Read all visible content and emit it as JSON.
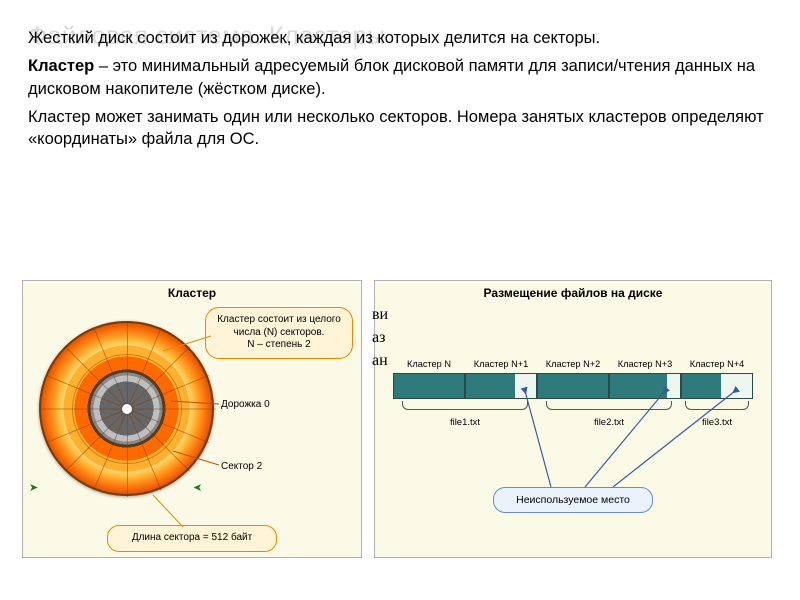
{
  "title": "Файловая система. Кластеры",
  "para1_a": "Жесткий диск состоит из дорожек, каждая из которых делится на секторы.",
  "para2_lead": "Кластер",
  "para2_rest": " – это минимальный адресуемый блок дисковой памяти для записи/чтения данных на дисковом накопителе (жёстком диске).",
  "para3": "Кластер может занимать один или несколько секторов. Номера занятых кластеров определяют «координаты» файла для ОС.",
  "panelA": {
    "title": "Кластер",
    "bubble_top": "Кластер состоит из целого числа (N) секторов.\nN – степень 2",
    "label_track": "Дорожка 0",
    "label_sector": "Сектор 2",
    "bubble_bottom": "Длина сектора = 512 байт",
    "colors": {
      "disk_outer": "#c44b00",
      "disk_mid": "#ff7a10",
      "disk_inner": "#ffd870",
      "bubble_bg": "#fff3d8",
      "bubble_border": "#e68a00",
      "panel_bg": "#fbfae6"
    }
  },
  "panelB": {
    "title": "Размещение файлов на диске",
    "clusters": [
      "Кластер N",
      "Кластер N+1",
      "Кластер N+2",
      "Кластер N+3",
      "Кластер N+4"
    ],
    "fills_pct": [
      100,
      70,
      100,
      82,
      55
    ],
    "files": [
      {
        "label": "file1.txt",
        "span_clusters": 2
      },
      {
        "label": "file2.txt",
        "span_clusters": 2
      },
      {
        "label": "file3.txt",
        "span_clusters": 1
      }
    ],
    "unused_label": "Неиспользуемое место",
    "colors": {
      "bar_fill": "#2f7a7a",
      "bar_empty": "#eef6f0",
      "bar_border": "#2a4a4a",
      "unused_bg": "#eaf2fb",
      "unused_border": "#6a8ac8",
      "arrow": "#3a5aa0"
    }
  },
  "stray": {
    "s1": "ви",
    "s2": "аз",
    "s3": "ан"
  }
}
